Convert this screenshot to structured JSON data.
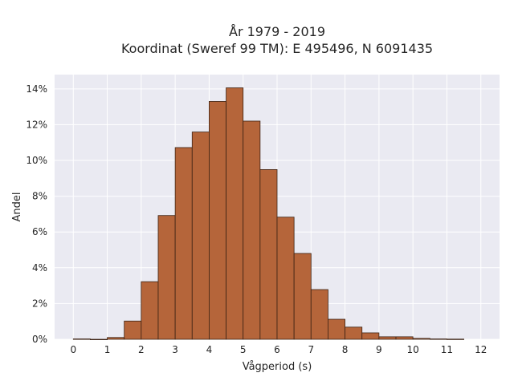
{
  "chart_data": {
    "type": "bar",
    "title_line1": "År 1979 - 2019",
    "title_line2": "Koordinat (Sweref 99 TM): E 495496, N 6091435",
    "xlabel": "Vågperiod (s)",
    "ylabel": "Andel",
    "bin_width": 0.5,
    "bins": [
      {
        "x0": 0.0,
        "value": 0.02
      },
      {
        "x0": 0.5,
        "value": 0.0
      },
      {
        "x0": 1.0,
        "value": 0.1
      },
      {
        "x0": 1.5,
        "value": 1.02
      },
      {
        "x0": 2.0,
        "value": 3.22
      },
      {
        "x0": 2.5,
        "value": 6.92
      },
      {
        "x0": 3.0,
        "value": 10.72
      },
      {
        "x0": 3.5,
        "value": 11.59
      },
      {
        "x0": 4.0,
        "value": 13.3
      },
      {
        "x0": 4.5,
        "value": 14.06
      },
      {
        "x0": 5.0,
        "value": 12.2
      },
      {
        "x0": 5.5,
        "value": 9.49
      },
      {
        "x0": 6.0,
        "value": 6.83
      },
      {
        "x0": 6.5,
        "value": 4.8
      },
      {
        "x0": 7.0,
        "value": 2.78
      },
      {
        "x0": 7.5,
        "value": 1.12
      },
      {
        "x0": 8.0,
        "value": 0.68
      },
      {
        "x0": 8.5,
        "value": 0.36
      },
      {
        "x0": 9.0,
        "value": 0.14
      },
      {
        "x0": 9.5,
        "value": 0.14
      },
      {
        "x0": 10.0,
        "value": 0.05
      },
      {
        "x0": 10.5,
        "value": 0.02
      },
      {
        "x0": 11.0,
        "value": 0.01
      }
    ],
    "xticks": [
      "0",
      "1",
      "2",
      "3",
      "4",
      "5",
      "6",
      "7",
      "8",
      "9",
      "10",
      "11",
      "12"
    ],
    "yticks": [
      "0%",
      "2%",
      "4%",
      "6%",
      "8%",
      "10%",
      "12%",
      "14%"
    ],
    "xlim": [
      -0.55,
      12.55
    ],
    "ylim": [
      0,
      14.8
    ],
    "grid": true,
    "colors": {
      "bar_fill": "#b5653a",
      "bar_stroke": "#3d2314",
      "plot_bg": "#eaeaf2",
      "grid": "#ffffff"
    }
  }
}
